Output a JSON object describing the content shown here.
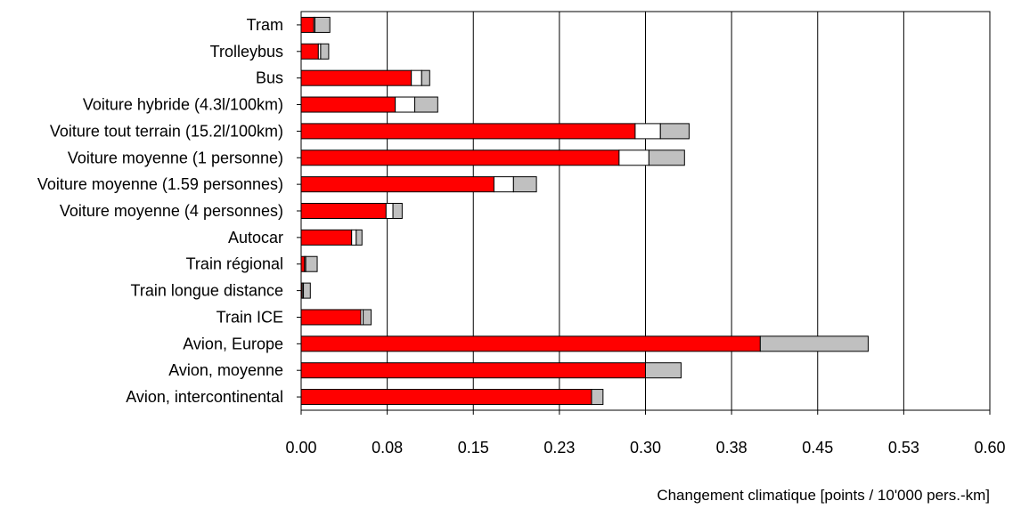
{
  "chart_data": {
    "type": "bar",
    "orientation": "horizontal",
    "stacked": true,
    "title": "",
    "xlabel": "Changement climatique [points / 10'000 pers.-km]",
    "ylabel": "",
    "xlim": [
      0,
      0.6
    ],
    "x_tick_labels": [
      "0.00",
      "0.08",
      "0.15",
      "0.23",
      "0.30",
      "0.38",
      "0.45",
      "0.53",
      "0.60"
    ],
    "grid": "vertical",
    "legend": "none",
    "categories": [
      "Tram",
      "Trolleybus",
      "Bus",
      "Voiture hybride (4.3l/100km)",
      "Voiture tout terrain (15.2l/100km)",
      "Voiture moyenne (1 personne)",
      "Voiture moyenne (1.59 personnes)",
      "Voiture moyenne (4 personnes)",
      "Autocar",
      "Train régional",
      "Train longue distance",
      "Train ICE",
      "Avion, Europe",
      "Avion, moyenne",
      "Avion, intercontinental"
    ],
    "series": [
      {
        "color": "#ff0000",
        "values": [
          0.011,
          0.015,
          0.096,
          0.082,
          0.291,
          0.277,
          0.168,
          0.074,
          0.044,
          0.003,
          0.001,
          0.052,
          0.4,
          0.3,
          0.253
        ]
      },
      {
        "color": "#ffffff",
        "values": [
          0.001,
          0.002,
          0.009,
          0.017,
          0.022,
          0.026,
          0.017,
          0.006,
          0.004,
          0.001,
          0.001,
          0.002,
          0.0,
          0.0,
          0.0
        ]
      },
      {
        "color": "#c0c0c0",
        "values": [
          0.013,
          0.007,
          0.007,
          0.02,
          0.025,
          0.031,
          0.02,
          0.008,
          0.005,
          0.01,
          0.006,
          0.007,
          0.094,
          0.031,
          0.01
        ]
      }
    ]
  }
}
